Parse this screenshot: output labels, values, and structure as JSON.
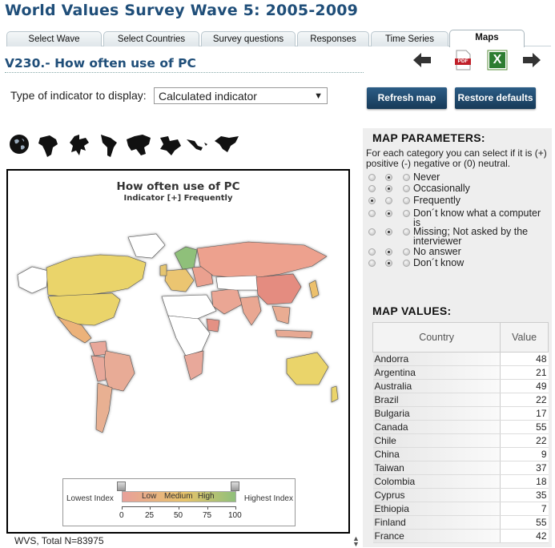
{
  "page": {
    "title": "World Values Survey Wave 5: 2005-2009"
  },
  "tabs": [
    {
      "label": "Select Wave"
    },
    {
      "label": "Select Countries"
    },
    {
      "label": "Survey questions"
    },
    {
      "label": "Responses"
    },
    {
      "label": "Time Series"
    },
    {
      "label": "Maps"
    }
  ],
  "question": {
    "title": "V230.- How often use of PC"
  },
  "nav": {
    "back": "arrow-left-icon",
    "pdf": "pdf-icon",
    "pdf_label": "PDF",
    "excel": "excel-icon",
    "excel_label": "X",
    "forward": "arrow-right-icon"
  },
  "indicator": {
    "label": "Type of indicator to display:",
    "value": "Calculated indicator"
  },
  "buttons": {
    "refresh": "Refresh map",
    "restore": "Restore defaults"
  },
  "regions": [
    "globe-icon",
    "africa-icon",
    "europe-icon",
    "latin-america-icon",
    "asia-icon",
    "middle-east-icon",
    "central-america-icon",
    "north-america-icon"
  ],
  "map": {
    "title": "How often use of PC",
    "subtitle": "Indicator [+] Frequently",
    "legend": {
      "lowest": "Lowest Index",
      "highest": "Highest Index",
      "low": "Low",
      "medium": "Medium",
      "high": "High",
      "ticks": [
        "0",
        "25",
        "50",
        "75",
        "100"
      ],
      "colors": [
        "#e8a09a",
        "#e7c36a",
        "#8fc07a"
      ]
    }
  },
  "footer": {
    "total": "WVS, Total N=83975"
  },
  "params": {
    "heading": "MAP PARAMETERS:",
    "description": "For each category you can select if it is (+) positive (-) negative or (0) neutral.",
    "rows": [
      {
        "label": "Never",
        "selected": "neutral"
      },
      {
        "label": "Occasionally",
        "selected": "neutral"
      },
      {
        "label": "Frequently",
        "selected": "positive"
      },
      {
        "label": "Don´t know what a computer is",
        "selected": "neutral"
      },
      {
        "label": "Missing; Not asked by the interviewer",
        "selected": "neutral"
      },
      {
        "label": "No answer",
        "selected": "neutral"
      },
      {
        "label": "Don´t know",
        "selected": "neutral"
      }
    ]
  },
  "values": {
    "heading": "MAP VALUES:",
    "columns": [
      "Country",
      "Value"
    ],
    "rows": [
      {
        "country": "Andorra",
        "value": "48"
      },
      {
        "country": "Argentina",
        "value": "21"
      },
      {
        "country": "Australia",
        "value": "49"
      },
      {
        "country": "Brazil",
        "value": "22"
      },
      {
        "country": "Bulgaria",
        "value": "17"
      },
      {
        "country": "Canada",
        "value": "55"
      },
      {
        "country": "Chile",
        "value": "22"
      },
      {
        "country": "China",
        "value": "9"
      },
      {
        "country": "Taiwan",
        "value": "37"
      },
      {
        "country": "Colombia",
        "value": "18"
      },
      {
        "country": "Cyprus",
        "value": "35"
      },
      {
        "country": "Ethiopia",
        "value": "7"
      },
      {
        "country": "Finland",
        "value": "55"
      },
      {
        "country": "France",
        "value": "42"
      }
    ]
  }
}
